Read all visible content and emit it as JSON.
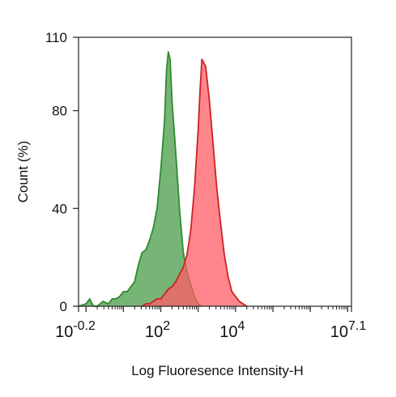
{
  "chart_data": {
    "type": "area",
    "xlabel": "Log Fluoresence Intensity-H",
    "ylabel": "Count  (%)",
    "x_scale": "log",
    "xlim_log10": [
      -0.2,
      7.1
    ],
    "ylim": [
      0,
      110
    ],
    "x_ticks": [
      {
        "log10": -0.2,
        "base": "10",
        "exp": "-0.2"
      },
      {
        "log10": 2,
        "base": "10",
        "exp": "2"
      },
      {
        "log10": 4,
        "base": "10",
        "exp": "4"
      },
      {
        "log10": 7.1,
        "base": "10",
        "exp": "7.1"
      }
    ],
    "y_ticks": [
      0,
      40,
      80,
      110
    ],
    "grid": false,
    "legend": "none",
    "series": [
      {
        "color": "#2e8b2e",
        "fill": "#5fa85f",
        "log10_x": [
          -0.2,
          0.0,
          0.1,
          0.2,
          0.3,
          0.45,
          0.6,
          0.7,
          0.8,
          0.9,
          1.0,
          1.1,
          1.2,
          1.3,
          1.4,
          1.5,
          1.6,
          1.7,
          1.8,
          1.9,
          2.0,
          2.05,
          2.1,
          2.15,
          2.2,
          2.25,
          2.3,
          2.4,
          2.5,
          2.6,
          2.7,
          2.8,
          2.9,
          3.0,
          3.1
        ],
        "y": [
          0,
          1,
          3,
          0,
          0,
          2,
          1,
          3,
          3,
          4,
          6,
          6,
          8,
          10,
          17,
          22,
          23,
          27,
          32,
          40,
          56,
          66,
          76,
          96,
          104,
          101,
          84,
          63,
          40,
          22,
          14,
          9,
          4,
          1,
          0
        ]
      },
      {
        "color": "#cc2222",
        "fill": "#ff5c66",
        "log10_x": [
          1.5,
          1.6,
          1.7,
          1.8,
          1.9,
          2.0,
          2.1,
          2.2,
          2.3,
          2.4,
          2.5,
          2.6,
          2.7,
          2.8,
          2.9,
          3.0,
          3.05,
          3.1,
          3.2,
          3.3,
          3.4,
          3.5,
          3.6,
          3.7,
          3.8,
          3.9,
          4.0,
          4.1,
          4.2,
          4.3
        ],
        "y": [
          0,
          1,
          1,
          2,
          3,
          3,
          5,
          7,
          8,
          10,
          13,
          16,
          21,
          31,
          48,
          72,
          88,
          101,
          98,
          84,
          66,
          48,
          34,
          21,
          12,
          6,
          4,
          2,
          1,
          0
        ]
      }
    ]
  }
}
